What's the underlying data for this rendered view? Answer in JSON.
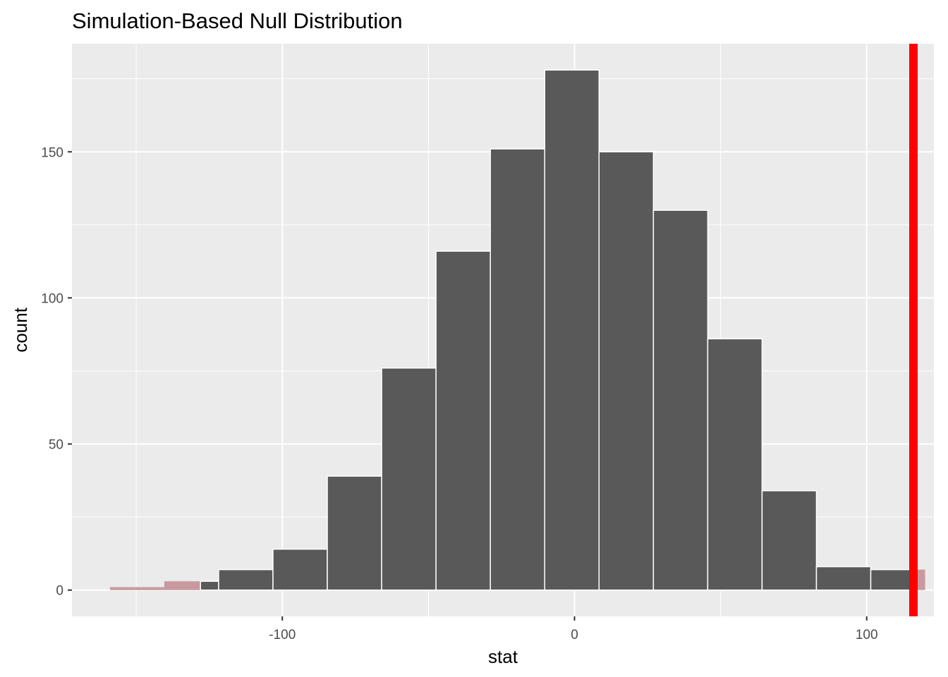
{
  "chart_data": {
    "type": "bar",
    "title": "Simulation-Based Null Distribution",
    "xlabel": "stat",
    "ylabel": "count",
    "xlim": [
      -172,
      123
    ],
    "ylim": [
      -9,
      187
    ],
    "x_ticks": [
      -100,
      0,
      100
    ],
    "x_tick_labels": [
      "-100",
      "0",
      "100"
    ],
    "y_ticks": [
      0,
      50,
      100,
      150
    ],
    "y_tick_labels": [
      "0",
      "50",
      "100",
      "150"
    ],
    "grid": true,
    "bin_width": 18.6,
    "bins": [
      {
        "xmin": -159.0,
        "xmax": -140.4,
        "count": 1,
        "shaded": true
      },
      {
        "xmin": -140.4,
        "xmax": -121.8,
        "count": 3,
        "shaded": true,
        "unshaded_from": -128.0
      },
      {
        "xmin": -121.8,
        "xmax": -103.2,
        "count": 7,
        "shaded": false
      },
      {
        "xmin": -103.2,
        "xmax": -84.6,
        "count": 14,
        "shaded": false
      },
      {
        "xmin": -84.6,
        "xmax": -66.0,
        "count": 39,
        "shaded": false
      },
      {
        "xmin": -66.0,
        "xmax": -47.4,
        "count": 76,
        "shaded": false
      },
      {
        "xmin": -47.4,
        "xmax": -28.8,
        "count": 116,
        "shaded": false
      },
      {
        "xmin": -28.8,
        "xmax": -10.2,
        "count": 151,
        "shaded": false
      },
      {
        "xmin": -10.2,
        "xmax": 8.4,
        "count": 178,
        "shaded": false
      },
      {
        "xmin": 8.4,
        "xmax": 27.0,
        "count": 150,
        "shaded": false
      },
      {
        "xmin": 27.0,
        "xmax": 45.6,
        "count": 130,
        "shaded": false
      },
      {
        "xmin": 45.6,
        "xmax": 64.2,
        "count": 86,
        "shaded": false
      },
      {
        "xmin": 64.2,
        "xmax": 82.8,
        "count": 34,
        "shaded": false
      },
      {
        "xmin": 82.8,
        "xmax": 101.4,
        "count": 8,
        "shaded": false
      },
      {
        "xmin": 101.4,
        "xmax": 120.0,
        "count": 7,
        "shaded": true,
        "shaded_from": 116.0
      }
    ],
    "observed_stat": 116.0,
    "colors": {
      "panel_background": "#ebebeb",
      "grid": "#ffffff",
      "bar_fill": "#595959",
      "bar_outline": "#ffffff",
      "shade_fill": "#c89aa0",
      "observed_line": "#ff0000"
    }
  }
}
